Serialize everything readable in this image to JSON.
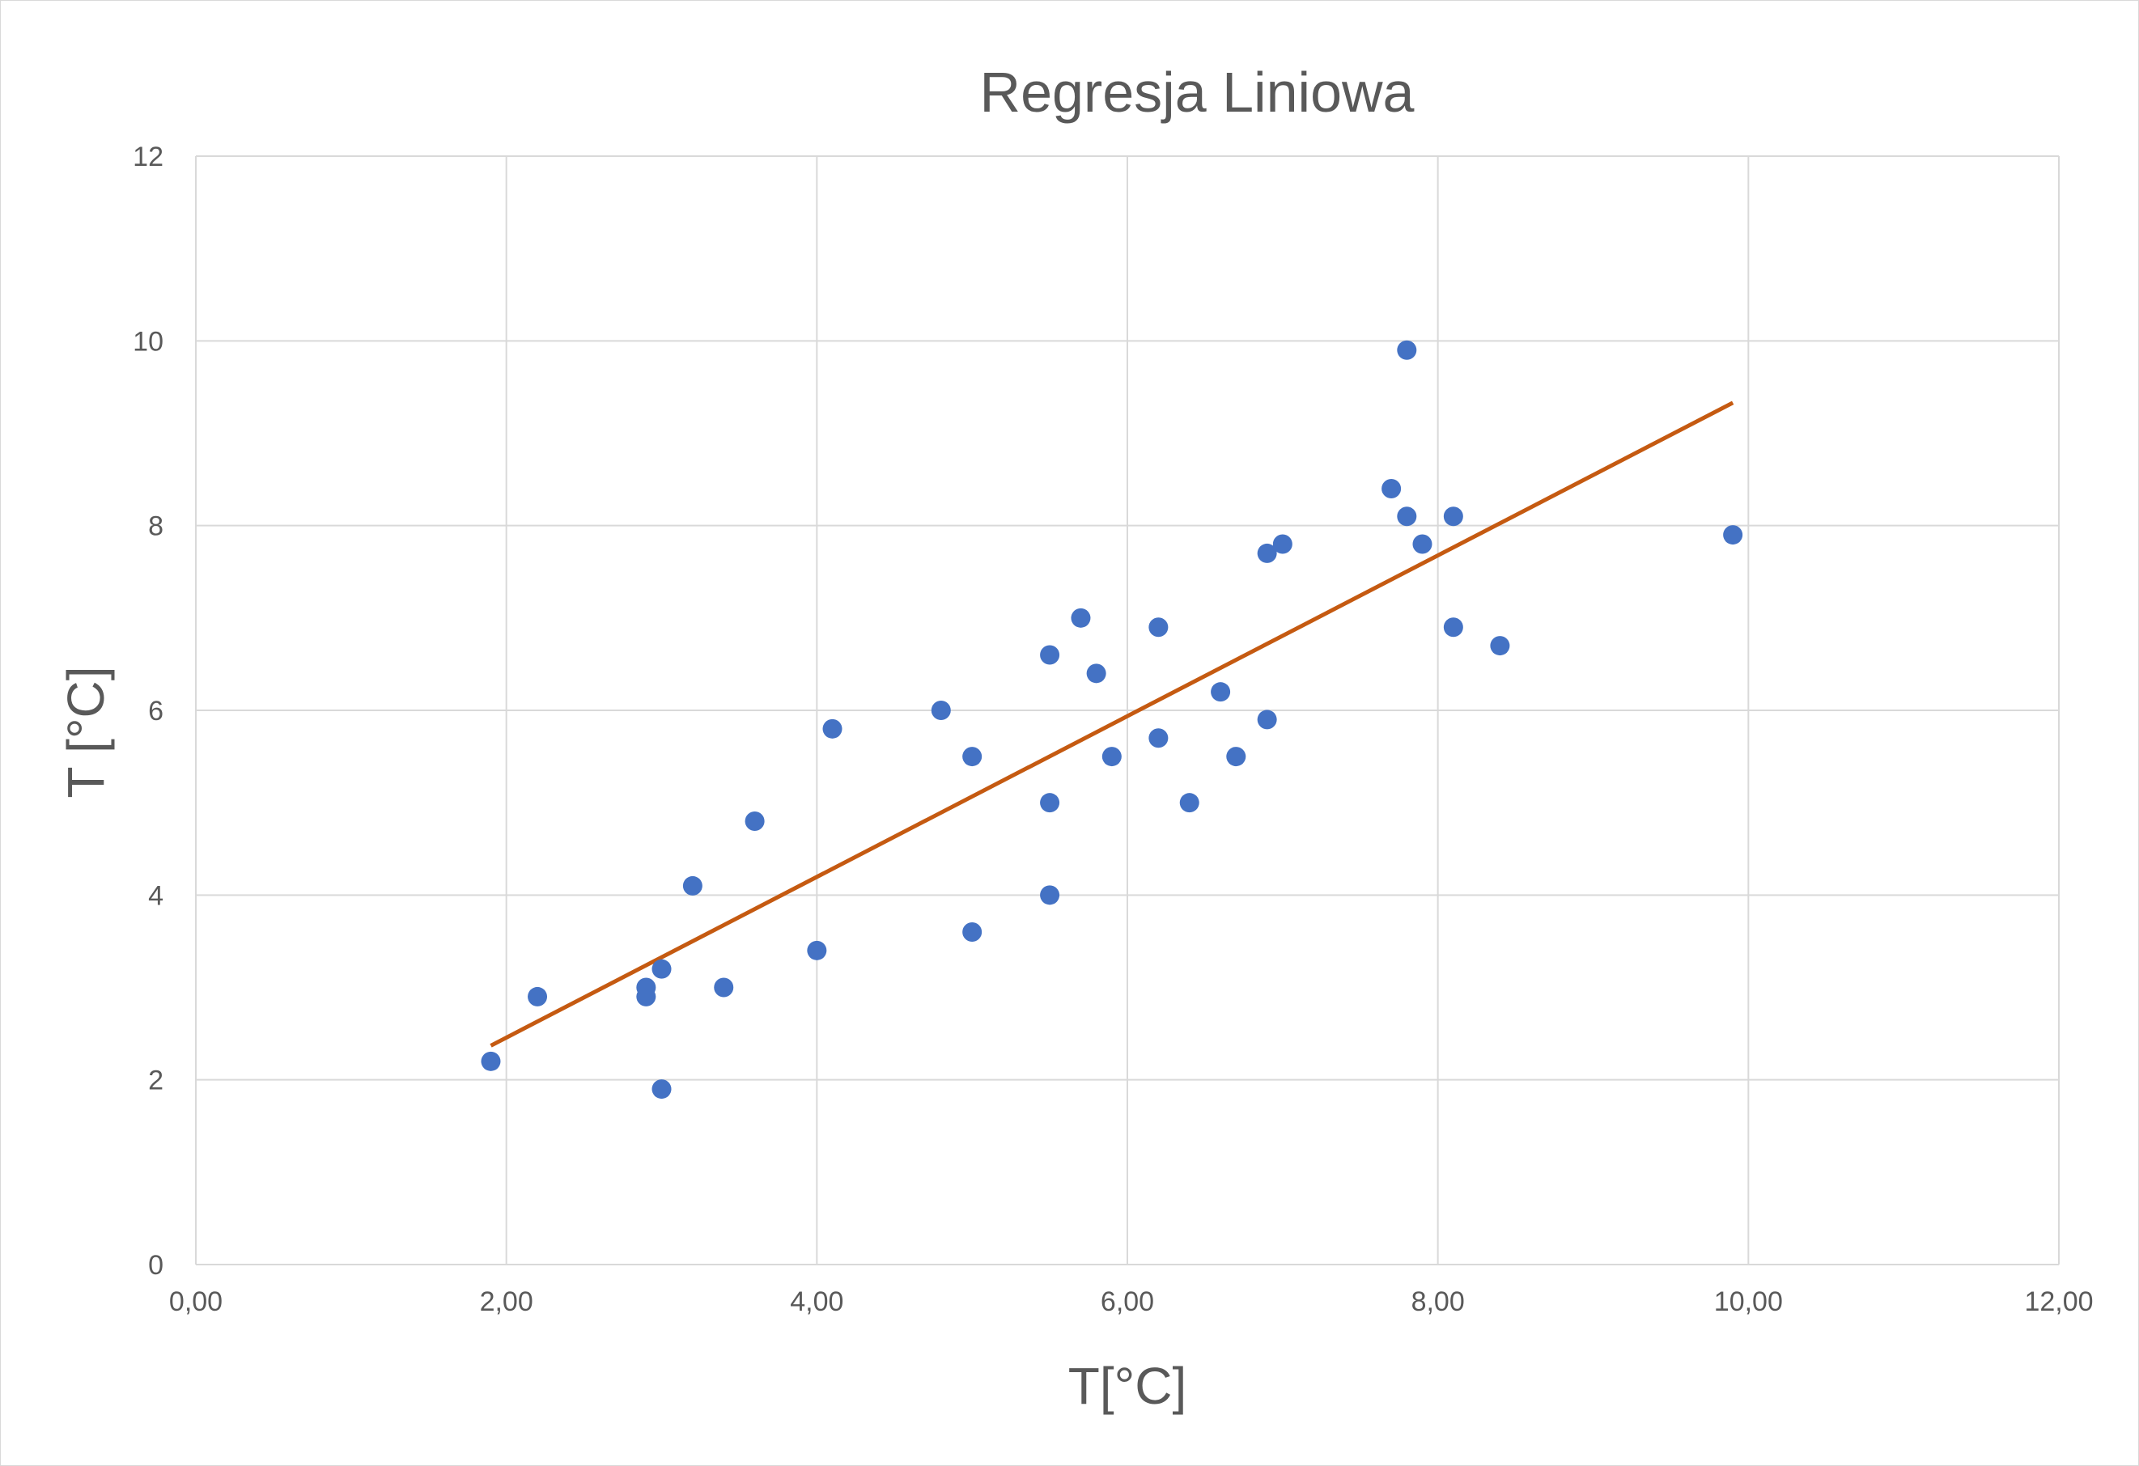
{
  "chart_data": {
    "type": "scatter",
    "title": "Regresja Liniowa",
    "xlabel": "T[°C]",
    "ylabel": "T [°C]",
    "xlim": [
      0,
      12
    ],
    "ylim": [
      0,
      12
    ],
    "x_ticks": [
      0,
      2,
      4,
      6,
      8,
      10,
      12
    ],
    "x_tick_labels": [
      "0,00",
      "2,00",
      "4,00",
      "6,00",
      "8,00",
      "10,00",
      "12,00"
    ],
    "y_ticks": [
      0,
      2,
      4,
      6,
      8,
      10,
      12
    ],
    "y_tick_labels": [
      "0",
      "2",
      "4",
      "6",
      "8",
      "10",
      "12"
    ],
    "grid": true,
    "legend": "none",
    "colors": {
      "points": "#4472C4",
      "trendline": "#C55A11",
      "grid": "#D9D9D9",
      "text": "#595959"
    },
    "series": [
      {
        "points": [
          [
            1.9,
            2.2
          ],
          [
            2.2,
            2.9
          ],
          [
            2.9,
            3.0
          ],
          [
            2.9,
            2.9
          ],
          [
            3.0,
            3.2
          ],
          [
            3.0,
            1.9
          ],
          [
            3.2,
            4.1
          ],
          [
            3.4,
            3.0
          ],
          [
            3.6,
            4.8
          ],
          [
            4.0,
            3.4
          ],
          [
            4.1,
            5.8
          ],
          [
            4.8,
            6.0
          ],
          [
            5.0,
            5.5
          ],
          [
            5.0,
            3.6
          ],
          [
            5.5,
            6.6
          ],
          [
            5.5,
            5.0
          ],
          [
            5.5,
            4.0
          ],
          [
            5.7,
            7.0
          ],
          [
            5.8,
            6.4
          ],
          [
            5.9,
            5.5
          ],
          [
            6.2,
            6.9
          ],
          [
            6.2,
            5.7
          ],
          [
            6.4,
            5.0
          ],
          [
            6.6,
            6.2
          ],
          [
            6.7,
            5.5
          ],
          [
            6.9,
            7.7
          ],
          [
            6.9,
            5.9
          ],
          [
            7.0,
            7.8
          ],
          [
            7.7,
            8.4
          ],
          [
            7.8,
            9.9
          ],
          [
            7.8,
            8.1
          ],
          [
            7.9,
            7.8
          ],
          [
            8.1,
            8.1
          ],
          [
            8.1,
            6.9
          ],
          [
            8.4,
            6.7
          ],
          [
            9.9,
            7.9
          ]
        ]
      }
    ],
    "trendline": {
      "type": "linear",
      "x_start": 1.9,
      "y_start": 2.37,
      "x_end": 9.9,
      "y_end": 9.33
    }
  }
}
